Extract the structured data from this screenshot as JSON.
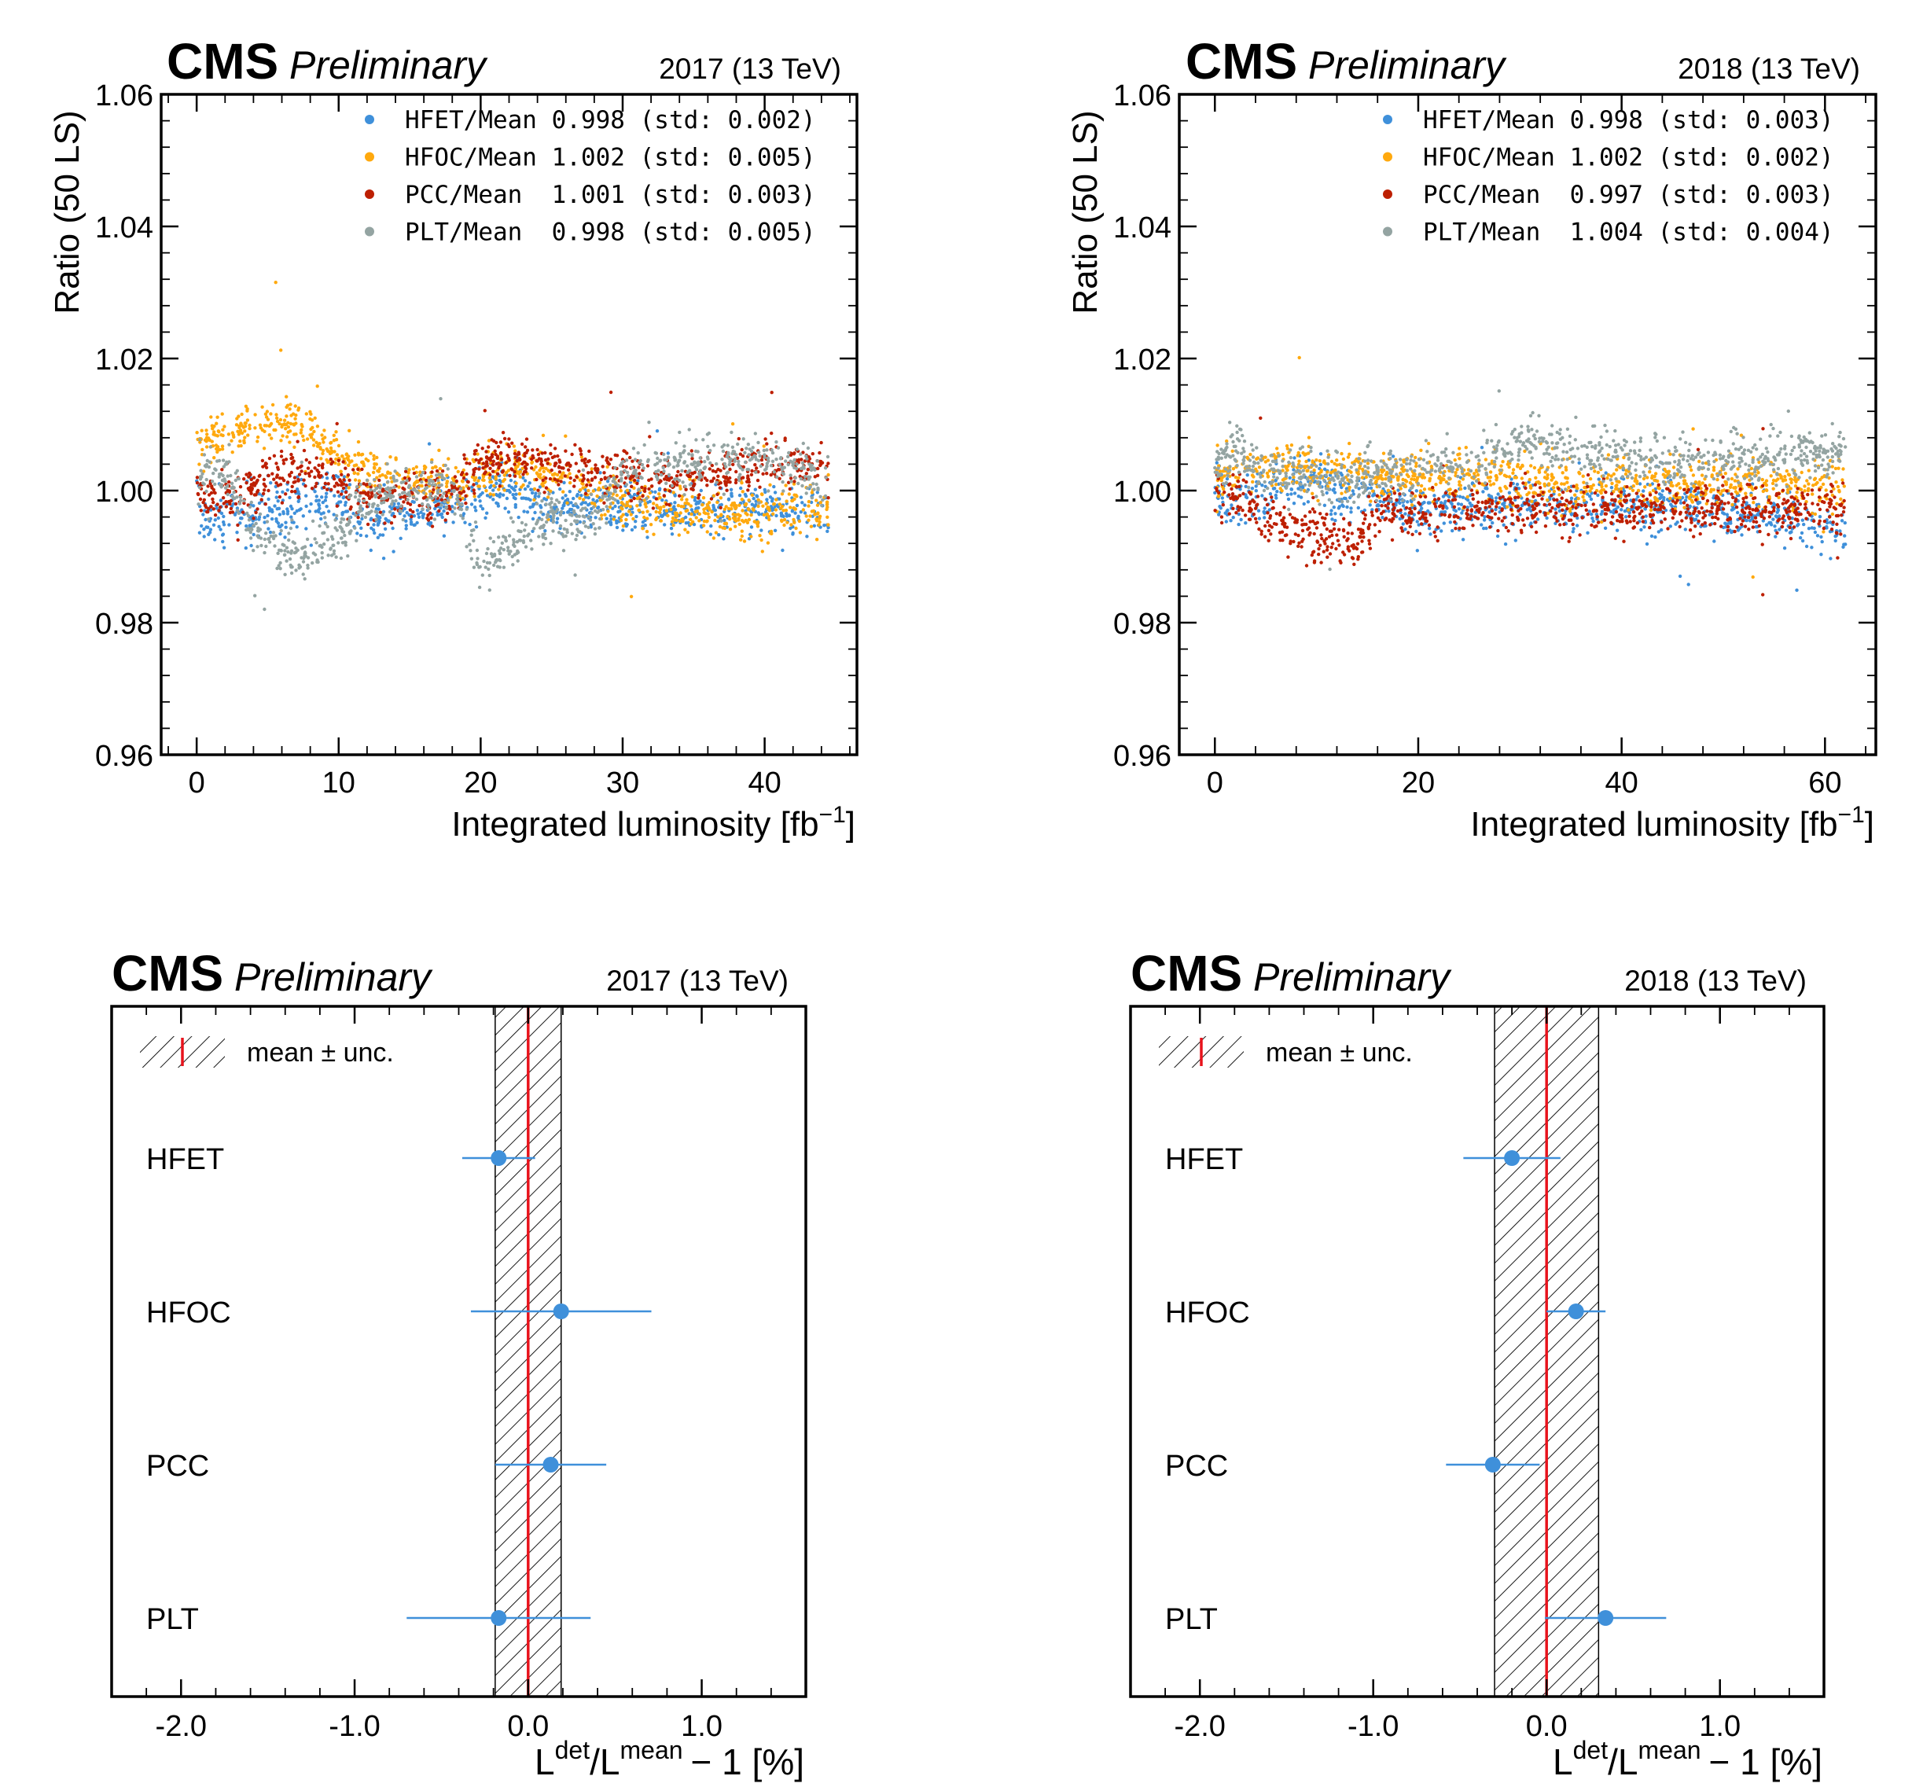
{
  "colors": {
    "HFET": "#3f90da",
    "HFOC": "#ffa90e",
    "PCC": "#bd1f01",
    "PLT": "#94a4a2",
    "mean_line": "#e8131c",
    "frame": "#000000"
  },
  "chart_data": [
    {
      "type": "scatter",
      "experiment": "CMS",
      "status": "Preliminary",
      "energy_label": "2017 (13 TeV)",
      "xlabel": "Integrated luminosity [fb",
      "xlabel_sup": "−1",
      "xlabel_close": "]",
      "ylabel": "Ratio (50 LS)",
      "xlim": [
        -2.5,
        46.5
      ],
      "ylim": [
        0.96,
        1.06
      ],
      "xticks": [
        0,
        10,
        20,
        30,
        40
      ],
      "yticks": [
        0.96,
        0.98,
        1.0,
        1.02,
        1.04,
        1.06
      ],
      "ytick_labels": [
        "0.96",
        "0.98",
        "1.00",
        "1.02",
        "1.04",
        "1.06"
      ],
      "xtick_labels": [
        "0",
        "10",
        "20",
        "30",
        "40"
      ],
      "xmax_data": 44.5,
      "legend": [
        {
          "key": "HFET",
          "text": "HFET/Mean 0.998 (std: 0.002)"
        },
        {
          "key": "HFOC",
          "text": "HFOC/Mean 1.002 (std: 0.005)"
        },
        {
          "key": "PCC",
          "text": "PCC/Mean  1.001 (std: 0.003)"
        },
        {
          "key": "PLT",
          "text": "PLT/Mean  0.998 (std: 0.005)"
        }
      ],
      "series": [
        {
          "name": "HFET",
          "mean": 0.998,
          "std": 0.002,
          "trend_x": [
            0,
            2,
            5,
            8,
            10,
            12,
            15,
            18,
            20,
            22,
            25,
            28,
            30,
            33,
            36,
            40,
            42,
            44.5
          ],
          "trend_y": [
            0.996,
            0.996,
            0.997,
            0.998,
            0.999,
            0.995,
            0.997,
            0.998,
            1.0,
            1.001,
            0.997,
            0.998,
            0.998,
            0.997,
            0.997,
            0.998,
            0.997,
            0.996
          ]
        },
        {
          "name": "HFOC",
          "mean": 1.002,
          "std": 0.005,
          "trend_x": [
            0,
            2,
            4,
            6,
            8,
            10,
            12,
            15,
            18,
            20,
            23,
            26,
            30,
            33,
            36,
            40,
            43,
            44.5
          ],
          "trend_y": [
            1.007,
            1.009,
            1.01,
            1.011,
            1.009,
            1.005,
            1.003,
            1.002,
            1.001,
            1.003,
            1.003,
            1.002,
            0.998,
            0.997,
            0.997,
            0.996,
            0.997,
            0.997
          ]
        },
        {
          "name": "PCC",
          "mean": 1.001,
          "std": 0.003,
          "trend_x": [
            0,
            2,
            5,
            8,
            10,
            12,
            15,
            18,
            20,
            22,
            25,
            28,
            30,
            33,
            36,
            40,
            43,
            44.5
          ],
          "trend_y": [
            0.999,
            0.999,
            1.002,
            1.003,
            1.001,
            0.999,
            0.999,
            0.999,
            1.004,
            1.005,
            1.004,
            1.003,
            1.003,
            1.001,
            1.002,
            1.004,
            1.004,
            1.003
          ]
        },
        {
          "name": "PLT",
          "mean": 0.998,
          "std": 0.005,
          "trend_x": [
            0,
            2,
            4,
            6,
            8,
            10,
            12,
            15,
            18,
            20,
            22,
            25,
            28,
            30,
            33,
            36,
            40,
            43,
            44.5
          ],
          "trend_y": [
            1.002,
            1.003,
            0.995,
            0.99,
            0.991,
            0.993,
            0.999,
            1.0,
            1.001,
            0.989,
            0.992,
            0.996,
            0.995,
            1.003,
            1.004,
            1.005,
            1.005,
            1.003,
            0.999
          ]
        }
      ]
    },
    {
      "type": "scatter",
      "experiment": "CMS",
      "status": "Preliminary",
      "energy_label": "2018 (13 TeV)",
      "xlabel": "Integrated luminosity [fb",
      "xlabel_sup": "−1",
      "xlabel_close": "]",
      "ylabel": "Ratio (50 LS)",
      "xlim": [
        -3.5,
        65
      ],
      "ylim": [
        0.96,
        1.06
      ],
      "xticks": [
        0,
        20,
        40,
        60
      ],
      "yticks": [
        0.96,
        0.98,
        1.0,
        1.02,
        1.04,
        1.06
      ],
      "ytick_labels": [
        "0.96",
        "0.98",
        "1.00",
        "1.02",
        "1.04",
        "1.06"
      ],
      "xtick_labels": [
        "0",
        "20",
        "40",
        "60"
      ],
      "xmax_data": 62,
      "legend": [
        {
          "key": "HFET",
          "text": "HFET/Mean 0.998 (std: 0.003)"
        },
        {
          "key": "HFOC",
          "text": "HFOC/Mean 1.002 (std: 0.002)"
        },
        {
          "key": "PCC",
          "text": "PCC/Mean  0.997 (std: 0.003)"
        },
        {
          "key": "PLT",
          "text": "PLT/Mean  1.004 (std: 0.004)"
        }
      ],
      "series": [
        {
          "name": "HFET",
          "mean": 0.998,
          "std": 0.003,
          "trend_x": [
            0,
            2,
            5,
            8,
            10,
            12,
            15,
            20,
            25,
            30,
            35,
            40,
            45,
            50,
            55,
            60,
            62
          ],
          "trend_y": [
            1.0,
            0.998,
            1.0,
            1.001,
            1.002,
            1.0,
            1.0,
            0.997,
            0.998,
            0.998,
            0.998,
            0.998,
            0.998,
            0.997,
            0.996,
            0.995,
            0.994
          ]
        },
        {
          "name": "HFOC",
          "mean": 1.002,
          "std": 0.002,
          "trend_x": [
            0,
            3,
            6,
            10,
            15,
            20,
            25,
            30,
            35,
            40,
            45,
            50,
            55,
            60,
            62
          ],
          "trend_y": [
            1.001,
            1.003,
            1.003,
            1.003,
            1.003,
            1.002,
            1.002,
            1.002,
            1.001,
            1.001,
            1.001,
            1.001,
            1.001,
            1.001,
            1.001
          ]
        },
        {
          "name": "PCC",
          "mean": 0.997,
          "std": 0.003,
          "trend_x": [
            0,
            2,
            4,
            6,
            8,
            10,
            12,
            14,
            16,
            20,
            25,
            30,
            35,
            40,
            45,
            50,
            55,
            60,
            62
          ],
          "trend_y": [
            1.0,
            0.999,
            0.997,
            0.995,
            0.994,
            0.993,
            0.992,
            0.992,
            0.996,
            0.996,
            0.997,
            0.997,
            0.997,
            0.997,
            0.997,
            0.997,
            0.997,
            0.997,
            0.996
          ]
        },
        {
          "name": "PLT",
          "mean": 1.004,
          "std": 0.004,
          "trend_x": [
            0,
            2,
            5,
            8,
            10,
            15,
            20,
            25,
            30,
            35,
            40,
            45,
            50,
            55,
            60,
            62
          ],
          "trend_y": [
            1.004,
            1.006,
            1.002,
            1.003,
            1.001,
            1.002,
            1.003,
            1.003,
            1.007,
            1.006,
            1.005,
            1.004,
            1.005,
            1.005,
            1.005,
            1.006
          ]
        }
      ]
    },
    {
      "type": "errorbar",
      "experiment": "CMS",
      "status": "Preliminary",
      "energy_label": "2017 (13 TeV)",
      "xlabel_L": "L",
      "xlabel_det": "det",
      "xlabel_mean": "mean",
      "xlabel_rest": "− 1 [%]",
      "xlim": [
        -2.4,
        1.6
      ],
      "xticks": [
        -2.0,
        -1.0,
        0.0,
        1.0
      ],
      "xtick_labels": [
        "-2.0",
        "-1.0",
        "0.0",
        "1.0"
      ],
      "band": {
        "center": 0.0,
        "half_width": 0.19
      },
      "legend_label": "mean ± unc.",
      "points": [
        {
          "label": "HFET",
          "value": -0.17,
          "err": 0.21
        },
        {
          "label": "HFOC",
          "value": 0.19,
          "err": 0.52
        },
        {
          "label": "PCC",
          "value": 0.13,
          "err": 0.32
        },
        {
          "label": "PLT",
          "value": -0.17,
          "err": 0.53
        }
      ]
    },
    {
      "type": "errorbar",
      "experiment": "CMS",
      "status": "Preliminary",
      "energy_label": "2018 (13 TeV)",
      "xlabel_L": "L",
      "xlabel_det": "det",
      "xlabel_mean": "mean",
      "xlabel_rest": "− 1 [%]",
      "xlim": [
        -2.4,
        1.6
      ],
      "xticks": [
        -2.0,
        -1.0,
        0.0,
        1.0
      ],
      "xtick_labels": [
        "-2.0",
        "-1.0",
        "0.0",
        "1.0"
      ],
      "band": {
        "center": 0.0,
        "half_width": 0.3
      },
      "legend_label": "mean ± unc.",
      "points": [
        {
          "label": "HFET",
          "value": -0.2,
          "err": 0.28
        },
        {
          "label": "HFOC",
          "value": 0.17,
          "err": 0.17
        },
        {
          "label": "PCC",
          "value": -0.31,
          "err": 0.27
        },
        {
          "label": "PLT",
          "value": 0.34,
          "err": 0.35
        }
      ]
    }
  ]
}
